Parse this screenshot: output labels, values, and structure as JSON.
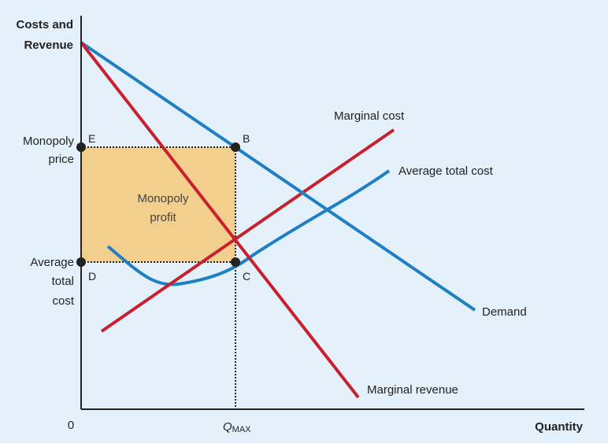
{
  "axes": {
    "y_label_line1": "Costs and",
    "y_label_line2": "Revenue",
    "x_label": "Quantity",
    "origin_label": "0",
    "q_max_main": "Q",
    "q_max_sub": "MAX"
  },
  "y_ticks": {
    "monopoly_price_line1": "Monopoly",
    "monopoly_price_line2": "price",
    "atc_line1": "Average",
    "atc_line2": "total",
    "atc_line3": "cost"
  },
  "curves": {
    "demand": "Demand",
    "marginal_revenue": "Marginal revenue",
    "marginal_cost": "Marginal cost",
    "average_total_cost": "Average total cost"
  },
  "points": {
    "b": "B",
    "c": "C",
    "d": "D",
    "e": "E"
  },
  "profit_area": {
    "line1": "Monopoly",
    "line2": "profit"
  },
  "colors": {
    "background": "#e4f1fa",
    "demand_curve": "#1f7fc4",
    "mr_curve": "#c8202f",
    "mc_curve": "#c8202f",
    "atc_curve": "#1f7fc4",
    "profit_fill": "#f2cf8c",
    "axis": "#222222"
  }
}
